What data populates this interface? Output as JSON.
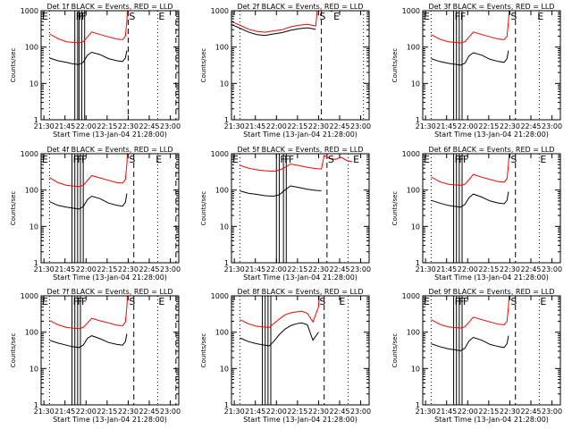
{
  "figure": {
    "xlabel": "Start Time (13-Jan-04 21:28:00)",
    "ylabel": "Counts/sec",
    "colors": {
      "events": "#000000",
      "lld": "#ff0000",
      "axis": "#000000",
      "background": "#ffffff"
    }
  },
  "chart_data": [
    {
      "type": "line",
      "title": "Det 1f BLACK = Events, RED = LLD",
      "x_ticks": [
        "21:30",
        "21:45",
        "22:00",
        "22:15",
        "22:30",
        "22:45",
        "23:00"
      ],
      "x_tick_minutes": [
        2,
        17,
        32,
        47,
        62,
        77,
        92
      ],
      "xlim": [
        0,
        98
      ],
      "ylim": [
        1,
        1000
      ],
      "yscale": "log",
      "y_ticks": [
        "1",
        "10",
        "100",
        "1000"
      ],
      "flag_labels": [
        "E",
        "F",
        "F",
        "F",
        "S",
        "E"
      ],
      "flag_minutes": [
        0,
        24,
        26,
        28,
        62,
        83
      ],
      "solid_lines_minutes": [
        24,
        26,
        27,
        29,
        31
      ],
      "dotted_lines_minutes": [
        6,
        83
      ],
      "dashed_lines_minutes": [
        62,
        96
      ],
      "series": [
        {
          "name": "BLACK = Events",
          "x": [
            6,
            12,
            18,
            22,
            27,
            30,
            33,
            36,
            42,
            48,
            54,
            58,
            60,
            61
          ],
          "y": [
            50,
            42,
            38,
            35,
            33,
            38,
            60,
            72,
            62,
            48,
            42,
            40,
            50,
            80
          ]
        },
        {
          "name": "RED = LLD",
          "x": [
            6,
            12,
            18,
            22,
            27,
            30,
            33,
            36,
            42,
            48,
            54,
            58,
            60,
            61,
            61.5
          ],
          "y": [
            230,
            170,
            140,
            135,
            130,
            140,
            190,
            260,
            220,
            190,
            165,
            160,
            200,
            500,
            1000
          ]
        }
      ]
    },
    {
      "type": "line",
      "title": "Det 2f BLACK = Events, RED = LLD",
      "x_ticks": [
        "21:30",
        "21:45",
        "22:00",
        "22:15",
        "22:30",
        "22:45",
        "23:00"
      ],
      "x_tick_minutes": [
        2,
        17,
        32,
        47,
        62,
        77,
        92
      ],
      "xlim": [
        0,
        98
      ],
      "ylim": [
        1,
        1000
      ],
      "yscale": "log",
      "y_ticks": [
        "1",
        "10",
        "100",
        "1000"
      ],
      "flag_labels": [
        "S",
        "E"
      ],
      "flag_minutes": [
        62,
        72
      ],
      "solid_lines_minutes": [],
      "dotted_lines_minutes": [
        6,
        94
      ],
      "dashed_lines_minutes": [
        64
      ],
      "series": [
        {
          "name": "BLACK = Events",
          "x": [
            0,
            6,
            12,
            18,
            24,
            30,
            36,
            42,
            48,
            54,
            60
          ],
          "y": [
            420,
            330,
            260,
            220,
            210,
            230,
            250,
            290,
            320,
            340,
            310
          ]
        },
        {
          "name": "RED = LLD",
          "x": [
            0,
            6,
            12,
            18,
            24,
            30,
            36,
            42,
            48,
            54,
            60,
            61,
            70,
            72
          ],
          "y": [
            500,
            400,
            310,
            270,
            255,
            280,
            300,
            360,
            400,
            420,
            380,
            1000,
            1000,
            950
          ]
        }
      ]
    },
    {
      "type": "line",
      "title": "Det 3f BLACK = Events, RED = LLD",
      "x_ticks": [
        "21:30",
        "21:45",
        "22:00",
        "22:15",
        "22:30",
        "22:45",
        "23:00"
      ],
      "x_tick_minutes": [
        2,
        17,
        32,
        47,
        62,
        77,
        92
      ],
      "xlim": [
        0,
        98
      ],
      "ylim": [
        1,
        1000
      ],
      "yscale": "log",
      "y_ticks": [
        "1",
        "10",
        "100",
        "1000"
      ],
      "flag_labels": [
        "E",
        "F",
        "F",
        "S",
        "E"
      ],
      "flag_minutes": [
        0,
        22,
        26,
        62,
        81
      ],
      "solid_lines_minutes": [
        22,
        24,
        26,
        28
      ],
      "dotted_lines_minutes": [
        6,
        83
      ],
      "dashed_lines_minutes": [
        66
      ],
      "series": [
        {
          "name": "BLACK = Events",
          "x": [
            6,
            12,
            18,
            22,
            27,
            30,
            33,
            36,
            42,
            48,
            54,
            58,
            60,
            61
          ],
          "y": [
            48,
            40,
            36,
            34,
            32,
            36,
            58,
            70,
            60,
            46,
            40,
            38,
            48,
            80
          ]
        },
        {
          "name": "RED = LLD",
          "x": [
            6,
            12,
            18,
            22,
            27,
            30,
            33,
            36,
            42,
            48,
            54,
            58,
            60,
            61,
            61.5
          ],
          "y": [
            220,
            165,
            140,
            135,
            130,
            140,
            190,
            260,
            220,
            190,
            165,
            160,
            200,
            500,
            1000
          ]
        }
      ]
    },
    {
      "type": "line",
      "title": "Det 4f BLACK = Events, RED = LLD",
      "x_ticks": [
        "21:30",
        "21:45",
        "22:00",
        "22:15",
        "22:30",
        "22:45",
        "23:00"
      ],
      "x_tick_minutes": [
        2,
        17,
        32,
        47,
        62,
        77,
        92
      ],
      "xlim": [
        0,
        98
      ],
      "ylim": [
        1,
        1000
      ],
      "yscale": "log",
      "y_ticks": [
        "1",
        "10",
        "100",
        "1000"
      ],
      "flag_labels": [
        "E",
        "F",
        "F",
        "F",
        "S",
        "E"
      ],
      "flag_minutes": [
        0,
        22,
        25,
        28,
        62,
        81
      ],
      "solid_lines_minutes": [
        22,
        24,
        26,
        28,
        30
      ],
      "dotted_lines_minutes": [
        6,
        83
      ],
      "dashed_lines_minutes": [
        66,
        96
      ],
      "series": [
        {
          "name": "BLACK = Events",
          "x": [
            6,
            12,
            18,
            22,
            27,
            30,
            33,
            36,
            42,
            48,
            54,
            58,
            60,
            61
          ],
          "y": [
            48,
            38,
            34,
            32,
            30,
            35,
            55,
            68,
            58,
            44,
            38,
            36,
            46,
            80
          ]
        },
        {
          "name": "RED = LLD",
          "x": [
            6,
            12,
            18,
            22,
            27,
            30,
            33,
            36,
            42,
            48,
            54,
            58,
            60,
            61,
            61.5
          ],
          "y": [
            220,
            160,
            135,
            130,
            125,
            135,
            185,
            250,
            215,
            185,
            160,
            155,
            195,
            500,
            1000
          ]
        }
      ]
    },
    {
      "type": "line",
      "title": "Det 5f BLACK = Events, RED = LLD",
      "x_ticks": [
        "21:30",
        "21:45",
        "22:00",
        "22:15",
        "22:30",
        "22:45",
        "23:00"
      ],
      "x_tick_minutes": [
        2,
        17,
        32,
        47,
        62,
        77,
        92
      ],
      "xlim": [
        0,
        98
      ],
      "ylim": [
        1,
        1000
      ],
      "yscale": "log",
      "y_ticks": [
        "1",
        "10",
        "100",
        "1000"
      ],
      "flag_labels": [
        "E",
        "F",
        "F",
        "F",
        "S",
        "E"
      ],
      "flag_minutes": [
        0,
        34,
        37,
        40,
        68,
        86
      ],
      "solid_lines_minutes": [
        32,
        34,
        37,
        39
      ],
      "dotted_lines_minutes": [
        6,
        83
      ],
      "dashed_lines_minutes": [
        68
      ],
      "series": [
        {
          "name": "BLACK = Events",
          "x": [
            6,
            12,
            18,
            24,
            30,
            34,
            38,
            42,
            48,
            54,
            60,
            64
          ],
          "y": [
            95,
            82,
            76,
            70,
            68,
            74,
            100,
            130,
            118,
            105,
            98,
            96
          ]
        },
        {
          "name": "RED = LLD",
          "x": [
            6,
            12,
            18,
            24,
            30,
            34,
            38,
            42,
            48,
            54,
            60,
            64,
            66,
            70,
            74,
            78,
            82,
            86
          ],
          "y": [
            480,
            400,
            360,
            340,
            330,
            350,
            420,
            520,
            470,
            420,
            390,
            380,
            900,
            750,
            700,
            800,
            650,
            600
          ]
        }
      ]
    },
    {
      "type": "line",
      "title": "Det 6f BLACK = Events, RED = LLD",
      "x_ticks": [
        "21:30",
        "21:45",
        "22:00",
        "22:15",
        "22:30",
        "22:45",
        "23:00"
      ],
      "x_tick_minutes": [
        2,
        17,
        32,
        47,
        62,
        77,
        92
      ],
      "xlim": [
        0,
        98
      ],
      "ylim": [
        1,
        1000
      ],
      "yscale": "log",
      "y_ticks": [
        "1",
        "10",
        "100",
        "1000"
      ],
      "flag_labels": [
        "E",
        "F",
        "F",
        "F",
        "S",
        "E"
      ],
      "flag_minutes": [
        0,
        22,
        25,
        28,
        62,
        83
      ],
      "solid_lines_minutes": [
        22,
        24,
        26,
        28
      ],
      "dotted_lines_minutes": [
        6,
        83
      ],
      "dashed_lines_minutes": [
        66
      ],
      "series": [
        {
          "name": "BLACK = Events",
          "x": [
            6,
            12,
            18,
            22,
            27,
            30,
            33,
            36,
            42,
            48,
            54,
            58,
            60,
            61
          ],
          "y": [
            52,
            44,
            38,
            36,
            34,
            40,
            62,
            78,
            64,
            50,
            44,
            42,
            52,
            90
          ]
        },
        {
          "name": "RED = LLD",
          "x": [
            6,
            12,
            18,
            22,
            27,
            30,
            33,
            36,
            42,
            48,
            54,
            58,
            60,
            61,
            61.5
          ],
          "y": [
            230,
            170,
            145,
            140,
            135,
            145,
            195,
            270,
            225,
            195,
            170,
            165,
            205,
            500,
            1000
          ]
        }
      ]
    },
    {
      "type": "line",
      "title": "Det 7f BLACK = Events, RED = LLD",
      "x_ticks": [
        "21:30",
        "21:45",
        "22:00",
        "22:15",
        "22:30",
        "22:45",
        "23:00"
      ],
      "x_tick_minutes": [
        2,
        17,
        32,
        47,
        62,
        77,
        92
      ],
      "xlim": [
        0,
        98
      ],
      "ylim": [
        1,
        1000
      ],
      "yscale": "log",
      "y_ticks": [
        "1",
        "10",
        "100",
        "1000"
      ],
      "flag_labels": [
        "E",
        "F",
        "F",
        "F",
        "S",
        "E"
      ],
      "flag_minutes": [
        0,
        22,
        25,
        28,
        62,
        83
      ],
      "solid_lines_minutes": [
        22,
        24,
        26,
        28
      ],
      "dotted_lines_minutes": [
        6,
        83
      ],
      "dashed_lines_minutes": [
        66,
        96
      ],
      "series": [
        {
          "name": "BLACK = Events",
          "x": [
            6,
            12,
            18,
            22,
            27,
            30,
            33,
            36,
            42,
            48,
            54,
            58,
            60,
            61
          ],
          "y": [
            60,
            50,
            44,
            40,
            38,
            44,
            68,
            80,
            66,
            52,
            46,
            44,
            55,
            90
          ]
        },
        {
          "name": "RED = LLD",
          "x": [
            6,
            12,
            18,
            22,
            27,
            30,
            33,
            36,
            42,
            48,
            54,
            58,
            60,
            61,
            61.5
          ],
          "y": [
            210,
            160,
            135,
            130,
            125,
            135,
            180,
            240,
            205,
            180,
            155,
            150,
            190,
            500,
            1000
          ]
        }
      ]
    },
    {
      "type": "line",
      "title": "Det 8f BLACK = Events, RED = LLD",
      "x_ticks": [
        "21:30",
        "21:45",
        "22:00",
        "22:15",
        "22:30",
        "22:45",
        "23:00"
      ],
      "x_tick_minutes": [
        2,
        17,
        32,
        47,
        62,
        77,
        92
      ],
      "xlim": [
        0,
        98
      ],
      "ylim": [
        1,
        1000
      ],
      "yscale": "log",
      "y_ticks": [
        "1",
        "10",
        "100",
        "1000"
      ],
      "flag_labels": [
        "S",
        "E"
      ],
      "flag_minutes": [
        62,
        76
      ],
      "solid_lines_minutes": [
        22,
        24,
        26,
        28
      ],
      "dotted_lines_minutes": [
        6,
        83
      ],
      "dashed_lines_minutes": [
        66
      ],
      "series": [
        {
          "name": "BLACK = Events",
          "x": [
            6,
            12,
            18,
            22,
            27,
            30,
            34,
            38,
            42,
            46,
            50,
            54,
            58,
            62
          ],
          "y": [
            70,
            55,
            48,
            45,
            42,
            55,
            85,
            120,
            150,
            170,
            180,
            160,
            60,
            100
          ]
        },
        {
          "name": "RED = LLD",
          "x": [
            6,
            12,
            18,
            22,
            27,
            30,
            34,
            38,
            42,
            46,
            50,
            54,
            58,
            62,
            62.5
          ],
          "y": [
            220,
            170,
            145,
            140,
            135,
            170,
            230,
            300,
            340,
            360,
            380,
            330,
            190,
            500,
            1000
          ]
        }
      ]
    },
    {
      "type": "line",
      "title": "Det 9f BLACK = Events, RED = LLD",
      "x_ticks": [
        "21:30",
        "21:45",
        "22:00",
        "22:15",
        "22:30",
        "22:45",
        "23:00"
      ],
      "x_tick_minutes": [
        2,
        17,
        32,
        47,
        62,
        77,
        92
      ],
      "xlim": [
        0,
        98
      ],
      "ylim": [
        1,
        1000
      ],
      "yscale": "log",
      "y_ticks": [
        "1",
        "10",
        "100",
        "1000"
      ],
      "flag_labels": [
        "E",
        "F",
        "F",
        "F",
        "S",
        "E"
      ],
      "flag_minutes": [
        0,
        22,
        25,
        28,
        62,
        83
      ],
      "solid_lines_minutes": [
        22,
        24,
        26,
        28
      ],
      "dotted_lines_minutes": [
        6,
        83
      ],
      "dashed_lines_minutes": [
        66
      ],
      "series": [
        {
          "name": "BLACK = Events",
          "x": [
            6,
            12,
            18,
            22,
            27,
            30,
            33,
            36,
            42,
            48,
            54,
            58,
            60,
            61
          ],
          "y": [
            48,
            40,
            35,
            33,
            31,
            36,
            58,
            72,
            60,
            46,
            40,
            38,
            48,
            80
          ]
        },
        {
          "name": "RED = LLD",
          "x": [
            6,
            12,
            18,
            22,
            27,
            30,
            33,
            36,
            42,
            48,
            54,
            58,
            60,
            61,
            61.5
          ],
          "y": [
            220,
            165,
            140,
            135,
            130,
            140,
            190,
            260,
            220,
            190,
            165,
            160,
            200,
            500,
            1000
          ]
        }
      ]
    }
  ]
}
